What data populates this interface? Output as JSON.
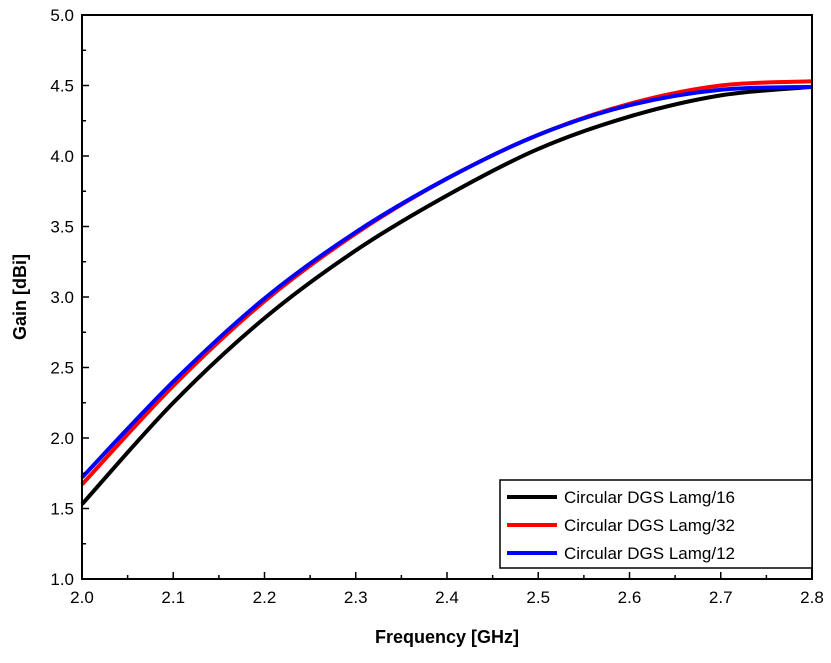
{
  "chart_data": {
    "type": "line",
    "xlabel": "Frequency [GHz]",
    "ylabel": "Gain [dBi]",
    "xlim": [
      2.0,
      2.8
    ],
    "ylim": [
      1.0,
      5.0
    ],
    "xticks": [
      "2.0",
      "2.1",
      "2.2",
      "2.3",
      "2.4",
      "2.5",
      "2.6",
      "2.7",
      "2.8"
    ],
    "yticks": [
      "1.0",
      "1.5",
      "2.0",
      "2.5",
      "3.0",
      "3.5",
      "4.0",
      "4.5",
      "5.0"
    ],
    "grid": false,
    "legend_position": "bottom-right",
    "x": [
      2.0,
      2.1,
      2.2,
      2.3,
      2.4,
      2.5,
      2.6,
      2.7,
      2.8
    ],
    "series": [
      {
        "name": "Circular DGS Lamg/16",
        "color": "#000000",
        "values": [
          1.53,
          2.25,
          2.85,
          3.33,
          3.72,
          4.05,
          4.28,
          4.43,
          4.49
        ]
      },
      {
        "name": "Circular DGS Lamg/32",
        "color": "#ff0000",
        "values": [
          1.67,
          2.37,
          2.97,
          3.45,
          3.84,
          4.15,
          4.37,
          4.5,
          4.53
        ]
      },
      {
        "name": "Circular DGS Lamg/12",
        "color": "#0000ff",
        "values": [
          1.72,
          2.4,
          2.99,
          3.46,
          3.84,
          4.15,
          4.36,
          4.47,
          4.49
        ]
      }
    ]
  }
}
